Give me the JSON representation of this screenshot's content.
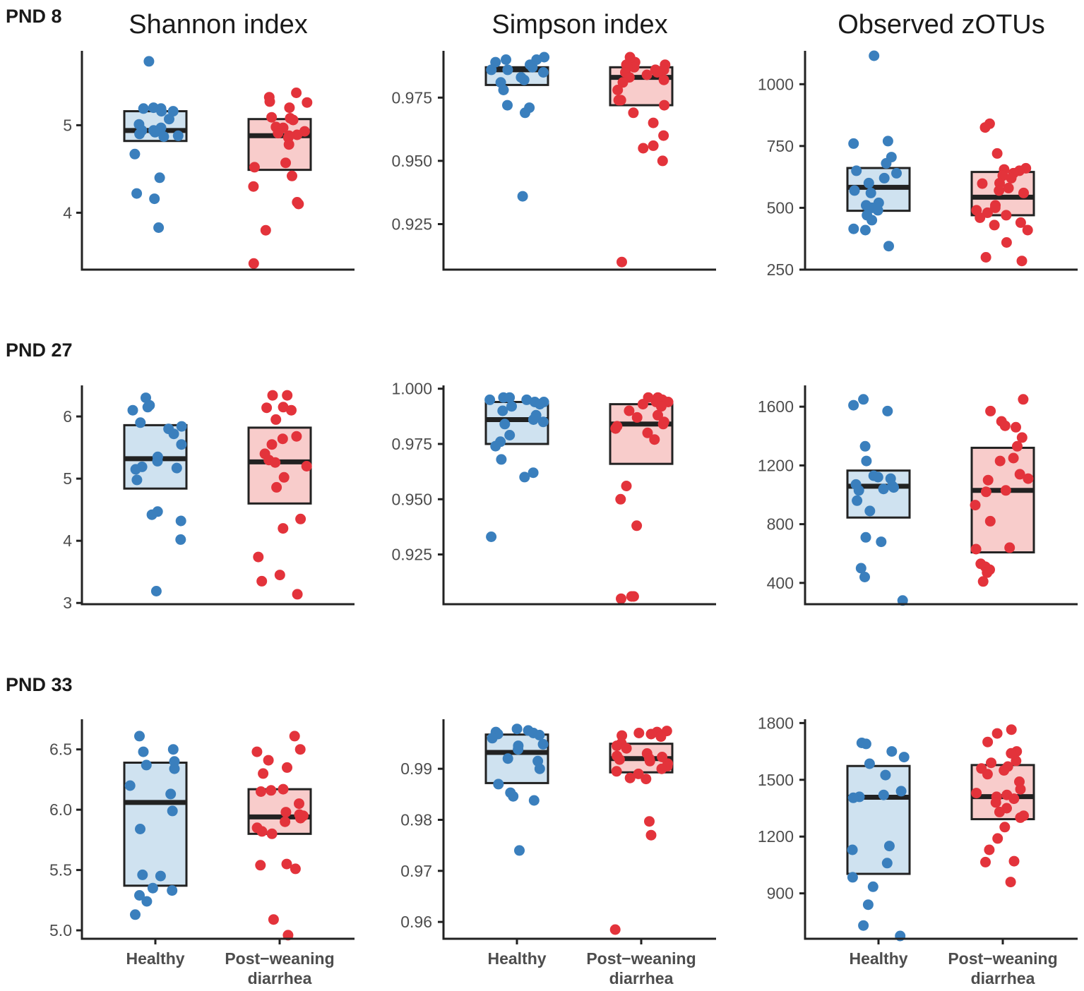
{
  "figure": {
    "column_titles": [
      "Shannon index",
      "Simpson index",
      "Observed zOTUs"
    ],
    "row_labels": [
      "PND 8",
      "PND 27",
      "PND 33"
    ],
    "categories": [
      "Healthy",
      "Post−weaning diarrhea"
    ],
    "category_lines": [
      [
        "Healthy"
      ],
      [
        "Post−weaning",
        "diarrhea"
      ]
    ],
    "colors": {
      "Healthy": {
        "point": "#3a7fbd",
        "box": "#cfe2f0"
      },
      "Post−weaning diarrhea": {
        "point": "#e3333b",
        "box": "#f8cccb"
      },
      "median": "#222222",
      "axis": "#222222"
    }
  },
  "chart_data": [
    {
      "id": "pnd8-shannon",
      "type": "boxplot-jitter",
      "title": "Shannon index",
      "row": "PND 8",
      "ylim": [
        3.35,
        5.85
      ],
      "yticks": [
        4,
        5
      ],
      "tick_labels": [
        "4",
        "5"
      ],
      "groups": [
        {
          "name": "Healthy",
          "box": {
            "q1": 4.82,
            "median": 4.94,
            "q3": 5.16
          },
          "points": [
            5.73,
            5.2,
            5.19,
            5.19,
            5.16,
            5.16,
            5.07,
            5.01,
            4.97,
            4.94,
            4.94,
            4.92,
            4.9,
            4.88,
            4.87,
            4.67,
            4.4,
            4.22,
            4.16,
            3.83
          ]
        },
        {
          "name": "Post−weaning diarrhea",
          "box": {
            "q1": 4.49,
            "median": 4.88,
            "q3": 5.07
          },
          "points": [
            5.37,
            5.32,
            5.27,
            5.26,
            5.2,
            5.09,
            5.08,
            5.06,
            4.98,
            4.97,
            4.93,
            4.91,
            4.89,
            4.88,
            4.86,
            4.78,
            4.57,
            4.52,
            4.42,
            4.3,
            4.12,
            4.1,
            3.8,
            3.42
          ]
        }
      ]
    },
    {
      "id": "pnd8-simpson",
      "type": "boxplot-jitter",
      "title": "Simpson index",
      "row": "PND 8",
      "ylim": [
        0.907,
        0.9935
      ],
      "yticks": [
        0.925,
        0.95,
        0.975
      ],
      "tick_labels": [
        "0.925",
        "0.950",
        "0.975"
      ],
      "groups": [
        {
          "name": "Healthy",
          "box": {
            "q1": 0.98,
            "median": 0.986,
            "q3": 0.987
          },
          "points": [
            0.991,
            0.99,
            0.99,
            0.989,
            0.988,
            0.987,
            0.986,
            0.986,
            0.985,
            0.983,
            0.982,
            0.981,
            0.978,
            0.972,
            0.971,
            0.969,
            0.936
          ]
        },
        {
          "name": "Post−weaning diarrhea",
          "box": {
            "q1": 0.972,
            "median": 0.983,
            "q3": 0.987
          },
          "points": [
            0.991,
            0.989,
            0.988,
            0.988,
            0.987,
            0.987,
            0.986,
            0.986,
            0.985,
            0.985,
            0.984,
            0.983,
            0.982,
            0.981,
            0.978,
            0.974,
            0.974,
            0.972,
            0.969,
            0.965,
            0.96,
            0.956,
            0.955,
            0.95,
            0.91
          ]
        }
      ]
    },
    {
      "id": "pnd8-zotus",
      "type": "boxplot-jitter",
      "title": "Observed zOTUs",
      "row": "PND 8",
      "ylim": [
        250,
        1135
      ],
      "yticks": [
        250,
        500,
        750,
        1000
      ],
      "tick_labels": [
        "250",
        "500",
        "750",
        "1000"
      ],
      "groups": [
        {
          "name": "Healthy",
          "box": {
            "q1": 488,
            "median": 583,
            "q3": 661
          },
          "points": [
            1115,
            770,
            760,
            705,
            680,
            650,
            640,
            620,
            600,
            570,
            560,
            520,
            510,
            500,
            490,
            470,
            450,
            415,
            410,
            345
          ]
        },
        {
          "name": "Post−weaning diarrhea",
          "box": {
            "q1": 470,
            "median": 543,
            "q3": 645
          },
          "points": [
            840,
            825,
            720,
            660,
            655,
            650,
            640,
            630,
            620,
            600,
            598,
            580,
            570,
            560,
            510,
            500,
            490,
            480,
            470,
            460,
            440,
            430,
            410,
            360,
            300,
            285
          ]
        }
      ]
    },
    {
      "id": "pnd27-shannon",
      "type": "boxplot-jitter",
      "title": "Shannon index",
      "row": "PND 27",
      "ylim": [
        2.98,
        6.5
      ],
      "yticks": [
        3,
        4,
        5,
        6
      ],
      "tick_labels": [
        "3",
        "4",
        "5",
        "6"
      ],
      "groups": [
        {
          "name": "Healthy",
          "box": {
            "q1": 4.84,
            "median": 5.32,
            "q3": 5.86
          },
          "points": [
            6.3,
            6.18,
            6.15,
            6.1,
            5.9,
            5.84,
            5.8,
            5.72,
            5.55,
            5.35,
            5.28,
            5.19,
            5.17,
            5.15,
            4.98,
            4.47,
            4.42,
            4.32,
            4.02,
            3.19
          ]
        },
        {
          "name": "Post−weaning diarrhea",
          "box": {
            "q1": 4.6,
            "median": 5.27,
            "q3": 5.82
          },
          "points": [
            6.34,
            6.34,
            6.15,
            6.14,
            6.1,
            5.95,
            5.68,
            5.64,
            5.55,
            5.4,
            5.3,
            5.26,
            5.2,
            5.02,
            4.86,
            4.35,
            4.2,
            3.74,
            3.45,
            3.35,
            3.14
          ]
        }
      ]
    },
    {
      "id": "pnd27-simpson",
      "type": "boxplot-jitter",
      "title": "Simpson index",
      "row": "PND 27",
      "ylim": [
        0.9025,
        1.0015
      ],
      "yticks": [
        0.925,
        0.95,
        0.975,
        1.0
      ],
      "tick_labels": [
        "0.925",
        "0.950",
        "0.975",
        "1.000"
      ],
      "groups": [
        {
          "name": "Healthy",
          "box": {
            "q1": 0.975,
            "median": 0.986,
            "q3": 0.994
          },
          "points": [
            0.996,
            0.996,
            0.995,
            0.995,
            0.994,
            0.994,
            0.993,
            0.992,
            0.99,
            0.988,
            0.986,
            0.985,
            0.984,
            0.979,
            0.976,
            0.974,
            0.968,
            0.962,
            0.96,
            0.933
          ]
        },
        {
          "name": "Post−weaning diarrhea",
          "box": {
            "q1": 0.966,
            "median": 0.984,
            "q3": 0.993
          },
          "points": [
            0.996,
            0.996,
            0.995,
            0.994,
            0.994,
            0.993,
            0.992,
            0.99,
            0.988,
            0.987,
            0.985,
            0.984,
            0.983,
            0.982,
            0.98,
            0.977,
            0.956,
            0.95,
            0.938,
            0.906,
            0.906,
            0.905
          ]
        }
      ]
    },
    {
      "id": "pnd27-zotus",
      "type": "boxplot-jitter",
      "title": "Observed zOTUs",
      "row": "PND 27",
      "ylim": [
        255,
        1745
      ],
      "yticks": [
        400,
        800,
        1200,
        1600
      ],
      "tick_labels": [
        "400",
        "800",
        "1200",
        "1600"
      ],
      "groups": [
        {
          "name": "Healthy",
          "box": {
            "q1": 845,
            "median": 1058,
            "q3": 1165
          },
          "points": [
            1650,
            1610,
            1570,
            1330,
            1230,
            1130,
            1120,
            1110,
            1070,
            1060,
            1050,
            1040,
            1030,
            960,
            890,
            710,
            680,
            500,
            440,
            280
          ]
        },
        {
          "name": "Post−weaning diarrhea",
          "box": {
            "q1": 608,
            "median": 1030,
            "q3": 1320
          },
          "points": [
            1650,
            1570,
            1500,
            1470,
            1460,
            1390,
            1330,
            1250,
            1230,
            1140,
            1110,
            1100,
            1030,
            1020,
            930,
            820,
            640,
            630,
            530,
            510,
            490,
            470,
            410
          ]
        }
      ]
    },
    {
      "id": "pnd33-shannon",
      "type": "boxplot-jitter",
      "title": "Shannon index",
      "row": "PND 33",
      "ylim": [
        4.93,
        6.75
      ],
      "yticks": [
        5.0,
        5.5,
        6.0,
        6.5
      ],
      "tick_labels": [
        "5.0",
        "5.5",
        "6.0",
        "6.5"
      ],
      "groups": [
        {
          "name": "Healthy",
          "box": {
            "q1": 5.37,
            "median": 6.06,
            "q3": 6.39
          },
          "points": [
            6.61,
            6.5,
            6.48,
            6.4,
            6.37,
            6.34,
            6.2,
            6.13,
            5.99,
            5.84,
            5.46,
            5.45,
            5.35,
            5.33,
            5.29,
            5.24,
            5.13
          ]
        },
        {
          "name": "Post−weaning diarrhea",
          "box": {
            "q1": 5.8,
            "median": 5.94,
            "q3": 6.17
          },
          "points": [
            6.61,
            6.5,
            6.48,
            6.41,
            6.35,
            6.3,
            6.17,
            6.16,
            6.15,
            6.05,
            5.98,
            5.96,
            5.95,
            5.93,
            5.9,
            5.85,
            5.82,
            5.8,
            5.55,
            5.54,
            5.51,
            5.09,
            4.96
          ]
        }
      ]
    },
    {
      "id": "pnd33-simpson",
      "type": "boxplot-jitter",
      "title": "Simpson index",
      "row": "PND 33",
      "ylim": [
        0.9567,
        0.9997
      ],
      "yticks": [
        0.96,
        0.97,
        0.98,
        0.99
      ],
      "tick_labels": [
        "0.96",
        "0.97",
        "0.98",
        "0.99"
      ],
      "groups": [
        {
          "name": "Healthy",
          "box": {
            "q1": 0.9872,
            "median": 0.9932,
            "q3": 0.9967
          },
          "points": [
            0.9978,
            0.9975,
            0.9972,
            0.997,
            0.9968,
            0.9966,
            0.996,
            0.9948,
            0.9945,
            0.9938,
            0.992,
            0.9915,
            0.99,
            0.987,
            0.9853,
            0.9846,
            0.9838,
            0.974
          ]
        },
        {
          "name": "Post−weaning diarrhea",
          "box": {
            "q1": 0.9893,
            "median": 0.992,
            "q3": 0.9949
          },
          "points": [
            0.9974,
            0.9972,
            0.997,
            0.9968,
            0.9965,
            0.9963,
            0.995,
            0.9945,
            0.994,
            0.993,
            0.9925,
            0.9923,
            0.992,
            0.9918,
            0.9915,
            0.991,
            0.9905,
            0.99,
            0.9895,
            0.989,
            0.9882,
            0.988,
            0.9797,
            0.977,
            0.9585
          ]
        }
      ]
    },
    {
      "id": "pnd33-zotus",
      "type": "boxplot-jitter",
      "title": "Observed zOTUs",
      "row": "PND 33",
      "ylim": [
        660,
        1820
      ],
      "yticks": [
        900,
        1200,
        1500,
        1800
      ],
      "tick_labels": [
        "900",
        "1200",
        "1500",
        "1800"
      ],
      "groups": [
        {
          "name": "Healthy",
          "box": {
            "q1": 1003,
            "median": 1408,
            "q3": 1573
          },
          "points": [
            1695,
            1690,
            1650,
            1620,
            1585,
            1525,
            1440,
            1420,
            1410,
            1405,
            1150,
            1130,
            1060,
            985,
            935,
            840,
            730,
            675
          ]
        },
        {
          "name": "Post−weaning diarrhea",
          "box": {
            "q1": 1292,
            "median": 1411,
            "q3": 1578
          },
          "points": [
            1765,
            1745,
            1700,
            1650,
            1640,
            1600,
            1590,
            1570,
            1560,
            1550,
            1530,
            1490,
            1450,
            1430,
            1420,
            1410,
            1400,
            1380,
            1350,
            1330,
            1310,
            1300,
            1250,
            1190,
            1130,
            1070,
            1065,
            960
          ]
        }
      ]
    }
  ]
}
